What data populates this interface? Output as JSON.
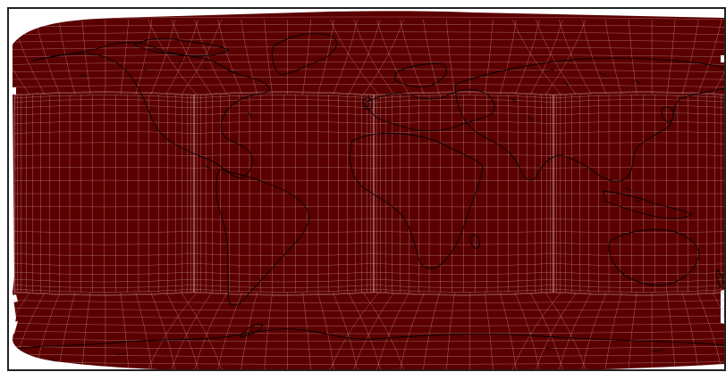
{
  "map": {
    "projection": "equirectangular",
    "field_color": "#5a0000",
    "grid_color": "#c89090",
    "coast_color": "#000000",
    "frame_color": "#222222",
    "background_color": "#ffffff"
  }
}
